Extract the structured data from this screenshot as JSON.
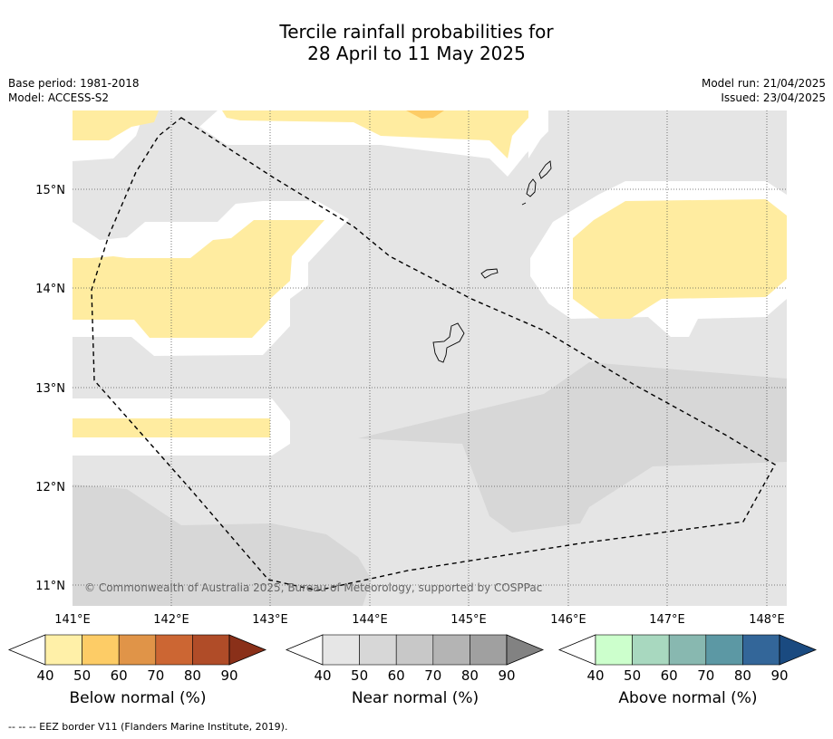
{
  "title_line1": "Tercile rainfall probabilities for",
  "title_line2": "28 April to 11 May 2025",
  "base_period": "Base period: 1981-2018",
  "model": "Model: ACCESS-S2",
  "model_run": "Model run: 21/04/2025",
  "issued": "Issued: 23/04/2025",
  "copyright": "© Commonwealth of Australia 2025, Bureau of Meteorology, supported by COSPPac",
  "lat_labels": [
    "15°N",
    "14°N",
    "13°N",
    "12°N",
    "11°N"
  ],
  "lon_labels": [
    "141°E",
    "142°E",
    "143°E",
    "144°E",
    "145°E",
    "146°E",
    "147°E",
    "148°E"
  ],
  "colorbars": [
    {
      "name": "Below normal (%)",
      "ticks": [
        "40",
        "50",
        "60",
        "70",
        "80",
        "90"
      ],
      "colors": [
        "#ffffff",
        "#fff0a8",
        "#fdcc66",
        "#e09448",
        "#cc6633",
        "#b04c28",
        "#8a3019"
      ]
    },
    {
      "name": "Near normal (%)",
      "ticks": [
        "40",
        "50",
        "60",
        "70",
        "80",
        "90"
      ],
      "colors": [
        "#ffffff",
        "#e6e6e6",
        "#d7d7d7",
        "#c8c8c8",
        "#b4b4b4",
        "#a0a0a0",
        "#828282"
      ]
    },
    {
      "name": "Above normal (%)",
      "ticks": [
        "40",
        "50",
        "60",
        "70",
        "80",
        "90"
      ],
      "colors": [
        "#ffffff",
        "#ccffcc",
        "#a8d8bf",
        "#88b8b0",
        "#5c98a4",
        "#336699",
        "#1a4a80"
      ]
    }
  ],
  "footer": "--  --  -- EEZ border V11 (Flanders Marine Institute, 2019).",
  "colors": {
    "near_normal_light": "#e5e5e5",
    "near_normal_dark": "#d7d7d7",
    "below_normal_light": "#ffeca0",
    "below_normal_mid": "#fdcc66"
  }
}
